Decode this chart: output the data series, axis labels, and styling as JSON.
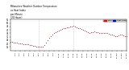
{
  "title": "Milwaukee Weather Outdoor Temperature\nvs Heat Index\nper Minute\n(24 Hours)",
  "bg_color": "#ffffff",
  "plot_bg_color": "#ffffff",
  "dot_color_temp": "#ff0000",
  "legend_temp_label": "Temp",
  "legend_heat_label": "Heat Index",
  "legend_temp_color": "#ff0000",
  "legend_heat_color": "#0000cc",
  "ylim": [
    10,
    55
  ],
  "xlim": [
    0,
    1440
  ],
  "xtick_labels": [
    "1:35",
    "2:35",
    "3:35",
    "4:35",
    "5:35",
    "6:35",
    "7:35",
    "8:35",
    "9:35",
    "10:35",
    "11:35",
    "12:35",
    "1:35p",
    "2:35p",
    "3:35p",
    "4:35p",
    "5:35p",
    "6:35p",
    "7:35p",
    "8:35p",
    "9:35p",
    "10:35p",
    "11:35p",
    "12:35p"
  ],
  "xtick_positions": [
    60,
    120,
    180,
    240,
    300,
    360,
    420,
    480,
    540,
    600,
    660,
    720,
    780,
    840,
    900,
    960,
    1020,
    1080,
    1140,
    1200,
    1260,
    1320,
    1380,
    1440
  ],
  "ytick_positions": [
    15,
    20,
    25,
    30,
    35,
    40,
    45,
    50,
    55
  ],
  "ytick_labels": [
    "15",
    "20",
    "25",
    "30",
    "35",
    "40",
    "45",
    "50",
    "55"
  ],
  "vline_positions": [
    350,
    780
  ],
  "temp_data_x": [
    0,
    20,
    40,
    60,
    80,
    100,
    120,
    140,
    160,
    180,
    200,
    220,
    240,
    260,
    280,
    300,
    320,
    340,
    360,
    380,
    400,
    420,
    440,
    460,
    480,
    500,
    520,
    540,
    560,
    580,
    600,
    620,
    640,
    660,
    680,
    700,
    720,
    740,
    760,
    780,
    800,
    820,
    840,
    860,
    880,
    900,
    920,
    940,
    960,
    980,
    1000,
    1020,
    1040,
    1060,
    1080,
    1100,
    1120,
    1140,
    1160,
    1180,
    1200,
    1220,
    1240,
    1260,
    1280,
    1300,
    1320,
    1340,
    1360,
    1380,
    1400,
    1420,
    1440
  ],
  "temp_data_y": [
    22,
    22,
    21,
    21,
    21,
    20,
    20,
    20,
    19,
    19,
    19,
    19,
    18,
    18,
    17,
    17,
    16,
    16,
    15,
    15,
    16,
    18,
    21,
    25,
    28,
    31,
    33,
    35,
    37,
    38,
    39,
    40,
    41,
    42,
    43,
    44,
    44,
    45,
    45,
    46,
    45,
    44,
    43,
    42,
    41,
    40,
    39,
    38,
    37,
    36,
    37,
    37,
    38,
    37,
    37,
    36,
    36,
    36,
    36,
    35,
    35,
    34,
    33,
    33,
    32,
    31,
    31,
    32,
    33,
    33,
    32,
    31,
    31
  ]
}
